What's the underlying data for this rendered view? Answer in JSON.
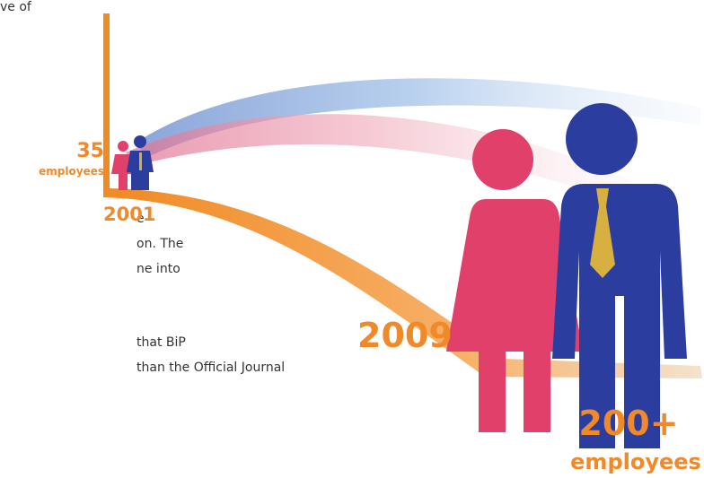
{
  "body_text": [
    "ve of",
    "e",
    "on. The",
    "ne into",
    "that BiP",
    "than the Official Journal"
  ],
  "start": {
    "count": "35",
    "unit": "employees",
    "year": "2001"
  },
  "end": {
    "year": "2009",
    "count": "200+",
    "unit": "employees"
  }
}
